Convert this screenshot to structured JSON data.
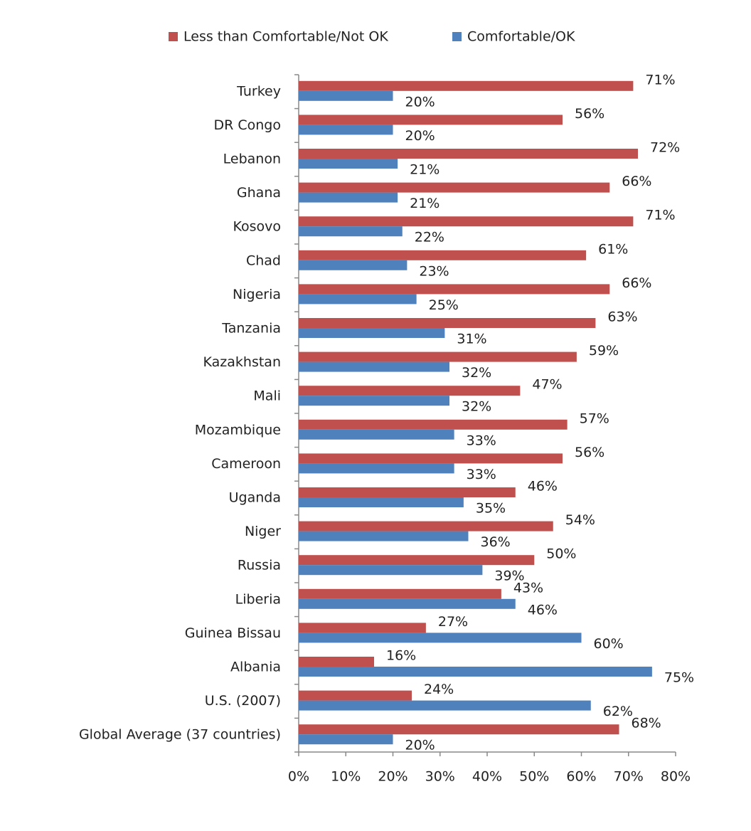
{
  "chart_data": {
    "type": "hbar",
    "categories": [
      "Turkey",
      "DR Congo",
      "Lebanon",
      "Ghana",
      "Kosovo",
      "Chad",
      "Nigeria",
      "Tanzania",
      "Kazakhstan",
      "Mali",
      "Mozambique",
      "Cameroon",
      "Uganda",
      "Niger",
      "Russia",
      "Liberia",
      "Guinea Bissau",
      "Albania",
      "U.S. (2007)",
      "Global Average (37 countries)"
    ],
    "series": [
      {
        "name": "Less than Comfortable/Not OK",
        "color": "#c0504d",
        "values": [
          71,
          56,
          72,
          66,
          71,
          61,
          66,
          63,
          59,
          47,
          57,
          56,
          46,
          54,
          50,
          43,
          27,
          16,
          24,
          68
        ],
        "value_labels": [
          "71%",
          "56%",
          "72%",
          "66%",
          "71%",
          "61%",
          "66%",
          "63%",
          "59%",
          "47%",
          "57%",
          "56%",
          "46%",
          "54%",
          "50%",
          "43%",
          "27%",
          "16%",
          "24%",
          "68%"
        ]
      },
      {
        "name": "Comfortable/OK",
        "color": "#4f81bd",
        "values": [
          20,
          20,
          21,
          21,
          22,
          23,
          25,
          31,
          32,
          32,
          33,
          33,
          35,
          36,
          39,
          46,
          60,
          75,
          62,
          20
        ],
        "value_labels": [
          "20%",
          "20%",
          "21%",
          "21%",
          "22%",
          "23%",
          "25%",
          "31%",
          "32%",
          "32%",
          "33%",
          "33%",
          "35%",
          "36%",
          "39%",
          "46%",
          "60%",
          "75%",
          "62%",
          "20%"
        ]
      }
    ],
    "xlim": [
      0,
      80
    ],
    "xticks": [
      {
        "value": 0,
        "label": "0%"
      },
      {
        "value": 10,
        "label": "10%"
      },
      {
        "value": 20,
        "label": "20%"
      },
      {
        "value": 30,
        "label": "30%"
      },
      {
        "value": 40,
        "label": "40%"
      },
      {
        "value": 50,
        "label": "50%"
      },
      {
        "value": 60,
        "label": "60%"
      },
      {
        "value": 70,
        "label": "70%"
      },
      {
        "value": 80,
        "label": "80%"
      }
    ],
    "grid": false,
    "legend": "top"
  }
}
